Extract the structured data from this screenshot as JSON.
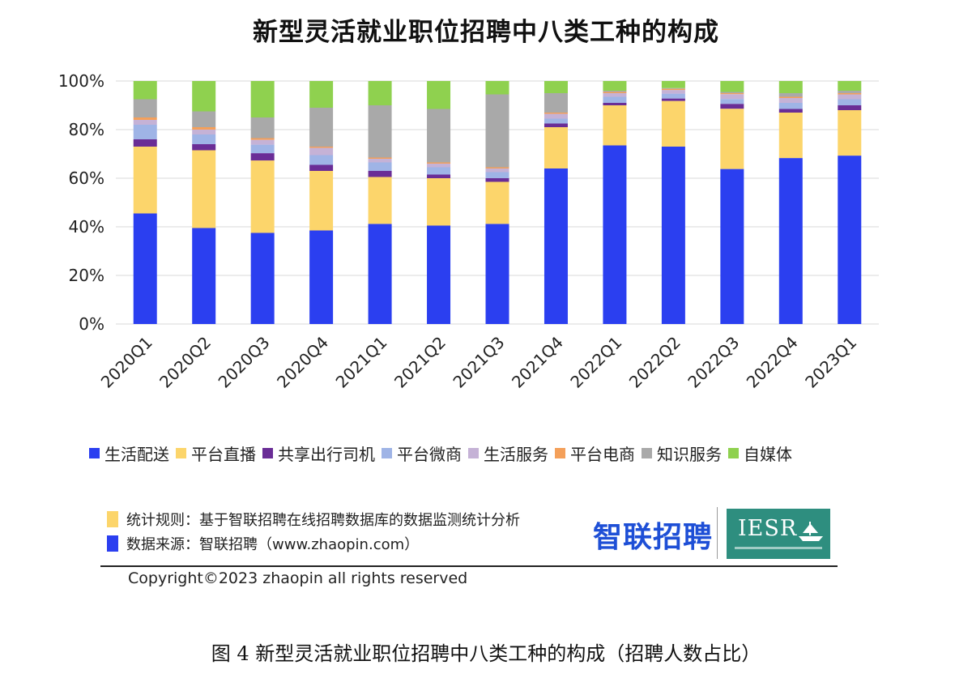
{
  "chart_data": {
    "type": "bar",
    "stacked": true,
    "title": "新型灵活就业职位招聘中八类工种的构成",
    "categories": [
      "2020Q1",
      "2020Q2",
      "2020Q3",
      "2020Q4",
      "2021Q1",
      "2021Q2",
      "2021Q3",
      "2021Q4",
      "2022Q1",
      "2022Q2",
      "2022Q3",
      "2022Q4",
      "2023Q1"
    ],
    "yticks": [
      "100%",
      "80%",
      "60%",
      "40%",
      "20%",
      "0%"
    ],
    "ylim": [
      0,
      100
    ],
    "grid": true,
    "legend_position": "bottom",
    "series": [
      {
        "name": "生活配送",
        "color": "#2b3ff0",
        "values": [
          45.5,
          39.5,
          37.5,
          38.5,
          41.2,
          40.5,
          41.2,
          64.0,
          73.5,
          73.0,
          63.8,
          68.3,
          69.3
        ]
      },
      {
        "name": "平台直播",
        "color": "#fcd56b",
        "values": [
          27.5,
          32.0,
          29.8,
          24.5,
          19.3,
          19.5,
          17.3,
          17.0,
          16.5,
          18.8,
          24.8,
          18.7,
          18.7
        ]
      },
      {
        "name": "共享出行司机",
        "color": "#6a2d96",
        "values": [
          3.0,
          2.5,
          3.0,
          2.5,
          2.5,
          1.5,
          1.5,
          1.5,
          1.0,
          1.0,
          2.0,
          1.5,
          2.0
        ]
      },
      {
        "name": "平台微商",
        "color": "#9fb4e6",
        "values": [
          6.0,
          4.0,
          3.5,
          4.0,
          3.5,
          3.0,
          2.5,
          2.0,
          2.5,
          2.0,
          2.0,
          2.5,
          2.5
        ]
      },
      {
        "name": "生活服务",
        "color": "#c5b2d6",
        "values": [
          2.0,
          2.0,
          2.0,
          3.0,
          1.5,
          1.5,
          1.5,
          2.0,
          1.5,
          1.5,
          2.0,
          2.0,
          2.0
        ]
      },
      {
        "name": "平台电商",
        "color": "#f4a05a",
        "values": [
          1.0,
          1.0,
          0.7,
          0.5,
          0.5,
          0.5,
          0.5,
          0.5,
          0.5,
          0.5,
          0.4,
          0.5,
          0.5
        ]
      },
      {
        "name": "知识服务",
        "color": "#a9a9a9",
        "values": [
          7.5,
          6.5,
          8.5,
          16.0,
          21.5,
          22.0,
          30.0,
          8.0,
          0.5,
          0.3,
          0.5,
          1.5,
          1.0
        ]
      },
      {
        "name": "自媒体",
        "color": "#8fd14f",
        "values": [
          7.5,
          12.5,
          15.0,
          11.0,
          10.0,
          11.5,
          5.5,
          5.0,
          4.0,
          2.9,
          4.5,
          5.0,
          4.0
        ]
      }
    ]
  },
  "notes": {
    "rule_label": "统计规则：基于智联招聘在线招聘数据库的数据监测统计分析",
    "rule_color": "#fcd56b",
    "source_label": "数据来源：智联招聘（www.zhaopin.com）",
    "source_color": "#2b3ff0"
  },
  "brand": {
    "zhaopin_logo_text": "智联招聘",
    "iesr_logo_text": "IESR"
  },
  "copyright": "Copyright©2023 zhaopin all rights reserved",
  "caption": "图 4  新型灵活就业职位招聘中八类工种的构成（招聘人数占比）"
}
